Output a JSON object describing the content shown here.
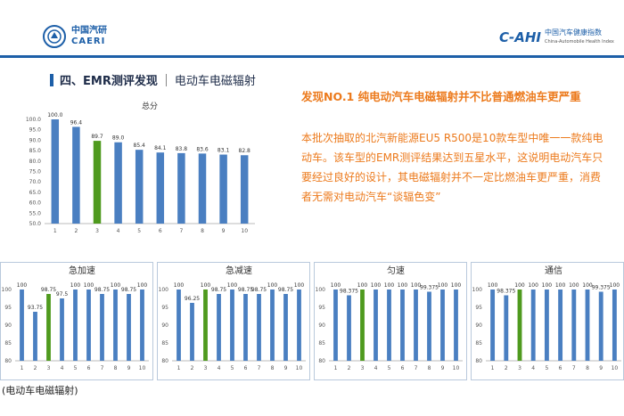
{
  "header": {
    "left_logo_cn": "中国汽研",
    "left_logo_en": "CAERI",
    "right_logo_mark": "C-AHI",
    "right_logo_cn": "中国汽车健康指数",
    "right_logo_en": "China-Automobile Health Index"
  },
  "section": {
    "title": "四、EMR测评发现",
    "subtitle": "电动车电磁辐射"
  },
  "finding": {
    "headline": "发现NO.1  纯电动汽车电磁辐射并不比普通燃油车更严重",
    "paragraph": "本批次抽取的北汽新能源EU5 R500是10款车型中唯一一款纯电动车。该车型的EMR测评结果达到五星水平，这说明电动汽车只要经过良好的设计，其电磁辐射并不一定比燃油车更严重，消费者无需对电动汽车“谈辐色变”"
  },
  "caption": "(电动车电磁辐射)",
  "colors": {
    "blue": "#4a7fc1",
    "green": "#4f9a1e",
    "orange": "#ec7a1c",
    "brand": "#1d5fa8"
  },
  "chart_data": [
    {
      "type": "bar",
      "title": "总分",
      "categories": [
        "1",
        "2",
        "3",
        "4",
        "5",
        "6",
        "7",
        "8",
        "9",
        "10"
      ],
      "values": [
        100.0,
        96.4,
        89.7,
        89.0,
        85.4,
        84.1,
        83.8,
        83.6,
        83.1,
        82.8
      ],
      "value_labels": [
        "100.0",
        "96.4",
        "89.7",
        "89.0",
        "85.4",
        "84.1",
        "83.8",
        "83.6",
        "83.1",
        "82.8"
      ],
      "highlight_index": 2,
      "ylim": [
        50,
        100
      ],
      "yticks": [
        "50.0",
        "55.0",
        "60.0",
        "65.0",
        "70.0",
        "75.0",
        "80.0",
        "85.0",
        "90.0",
        "95.0",
        "100.0"
      ],
      "grid": false
    },
    {
      "type": "bar",
      "title": "急加速",
      "categories": [
        "1",
        "2",
        "3",
        "4",
        "5",
        "6",
        "7",
        "8",
        "9",
        "10"
      ],
      "values": [
        100,
        93.75,
        98.75,
        97.5,
        100,
        100,
        98.75,
        100,
        98.75,
        100
      ],
      "value_labels": [
        "100",
        "93.75",
        "98.75",
        "97.5",
        "100",
        "100",
        "98.75",
        "100",
        "98.75",
        "100"
      ],
      "highlight_index": 2,
      "ylim": [
        80,
        100
      ],
      "yticks": [
        "80",
        "85",
        "90",
        "95",
        "100"
      ],
      "grid": false
    },
    {
      "type": "bar",
      "title": "急减速",
      "categories": [
        "1",
        "2",
        "3",
        "4",
        "5",
        "6",
        "7",
        "8",
        "9",
        "10"
      ],
      "values": [
        100,
        96.25,
        100,
        98.75,
        100,
        98.75,
        98.75,
        100,
        98.75,
        100
      ],
      "value_labels": [
        "100",
        "96.25",
        "100",
        "98.75",
        "100",
        "98.75",
        "98.75",
        "100",
        "98.75",
        "100"
      ],
      "highlight_index": 2,
      "ylim": [
        80,
        100
      ],
      "yticks": [
        "80",
        "85",
        "90",
        "95",
        "100"
      ],
      "grid": false
    },
    {
      "type": "bar",
      "title": "匀速",
      "categories": [
        "1",
        "2",
        "3",
        "4",
        "5",
        "6",
        "7",
        "8",
        "9",
        "10"
      ],
      "values": [
        100,
        98.375,
        100,
        100,
        100,
        100,
        100,
        99.375,
        100,
        100
      ],
      "value_labels": [
        "100",
        "98.375",
        "100",
        "100",
        "100",
        "100",
        "100",
        "99.375",
        "100",
        "100"
      ],
      "highlight_index": 2,
      "ylim": [
        80,
        100
      ],
      "yticks": [
        "80",
        "85",
        "90",
        "95",
        "100"
      ],
      "grid": false
    },
    {
      "type": "bar",
      "title": "通信",
      "categories": [
        "1",
        "2",
        "3",
        "4",
        "5",
        "6",
        "7",
        "8",
        "9",
        "10"
      ],
      "values": [
        100,
        98.375,
        100,
        100,
        100,
        100,
        100,
        100,
        99.375,
        100
      ],
      "value_labels": [
        "100",
        "98.375",
        "100",
        "100",
        "100",
        "100",
        "100",
        "100",
        "99.375",
        "100"
      ],
      "highlight_index": 2,
      "ylim": [
        80,
        100
      ],
      "yticks": [
        "80",
        "85",
        "90",
        "95",
        "100"
      ],
      "grid": false
    }
  ]
}
